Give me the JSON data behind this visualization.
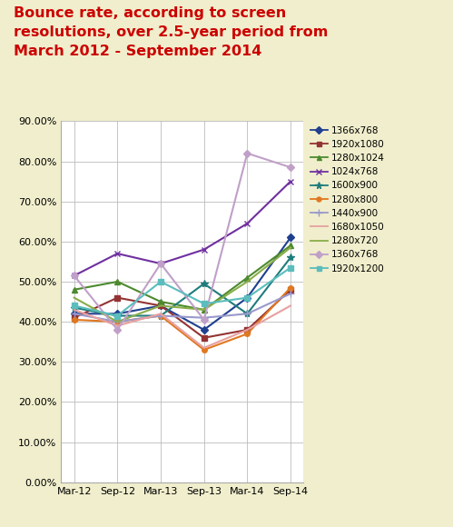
{
  "title": "Bounce rate, according to screen\nresolutions, over 2.5-year period from\nMarch 2012 - September 2014",
  "x_labels": [
    "Mar-12",
    "Sep-12",
    "Mar-13",
    "Sep-13",
    "Mar-14",
    "Sep-14"
  ],
  "series": [
    {
      "label": "1366x768",
      "color": "#1f3f8f",
      "marker": "D",
      "markersize": 4,
      "linewidth": 1.5,
      "values": [
        0.42,
        0.42,
        0.44,
        0.38,
        0.46,
        0.61
      ]
    },
    {
      "label": "1920x1080",
      "color": "#943333",
      "marker": "s",
      "markersize": 4,
      "linewidth": 1.5,
      "values": [
        0.41,
        0.46,
        0.44,
        0.36,
        0.38,
        0.48
      ]
    },
    {
      "label": "1280x1024",
      "color": "#4c8a2e",
      "marker": "^",
      "markersize": 4,
      "linewidth": 1.5,
      "values": [
        0.48,
        0.5,
        0.45,
        0.43,
        0.51,
        0.59
      ]
    },
    {
      "label": "1024x768",
      "color": "#7030a0",
      "marker": "x",
      "markersize": 5,
      "linewidth": 1.5,
      "values": [
        0.515,
        0.57,
        0.545,
        0.58,
        0.645,
        0.75
      ]
    },
    {
      "label": "1600x900",
      "color": "#1f7c7c",
      "marker": "*",
      "markersize": 6,
      "linewidth": 1.5,
      "values": [
        0.435,
        0.415,
        0.415,
        0.495,
        0.42,
        0.56
      ]
    },
    {
      "label": "1280x800",
      "color": "#e07820",
      "marker": "o",
      "markersize": 4,
      "linewidth": 1.5,
      "values": [
        0.405,
        0.4,
        0.415,
        0.33,
        0.37,
        0.485
      ]
    },
    {
      "label": "1440x900",
      "color": "#9999cc",
      "marker": "+",
      "markersize": 6,
      "linewidth": 1.5,
      "values": [
        0.42,
        0.4,
        0.415,
        0.41,
        0.42,
        0.47
      ]
    },
    {
      "label": "1680x1050",
      "color": "#e8a0a0",
      "marker": "None",
      "markersize": 4,
      "linewidth": 1.5,
      "values": [
        0.43,
        0.39,
        0.42,
        0.335,
        0.38,
        0.44
      ]
    },
    {
      "label": "1280x720",
      "color": "#8aad4a",
      "marker": "None",
      "markersize": 4,
      "linewidth": 1.5,
      "values": [
        0.46,
        0.4,
        0.44,
        0.43,
        0.5,
        0.585
      ]
    },
    {
      "label": "1360x768",
      "color": "#c0a0c8",
      "marker": "D",
      "markersize": 4,
      "linewidth": 1.5,
      "values": [
        0.515,
        0.38,
        0.545,
        0.405,
        0.82,
        0.785
      ]
    },
    {
      "label": "1920x1200",
      "color": "#5bbdbd",
      "marker": "s",
      "markersize": 4,
      "linewidth": 1.5,
      "values": [
        0.44,
        0.415,
        0.5,
        0.445,
        0.46,
        0.535
      ]
    }
  ],
  "ylim": [
    0.0,
    0.9
  ],
  "yticks": [
    0.0,
    0.1,
    0.2,
    0.3,
    0.4,
    0.5,
    0.6,
    0.7,
    0.8,
    0.9
  ],
  "background_color": "#f0eecc",
  "plot_bg_color": "#ffffff",
  "title_color": "#cc0000",
  "title_fontsize": 11.5,
  "axis_fontsize": 8,
  "legend_fontsize": 7.5
}
